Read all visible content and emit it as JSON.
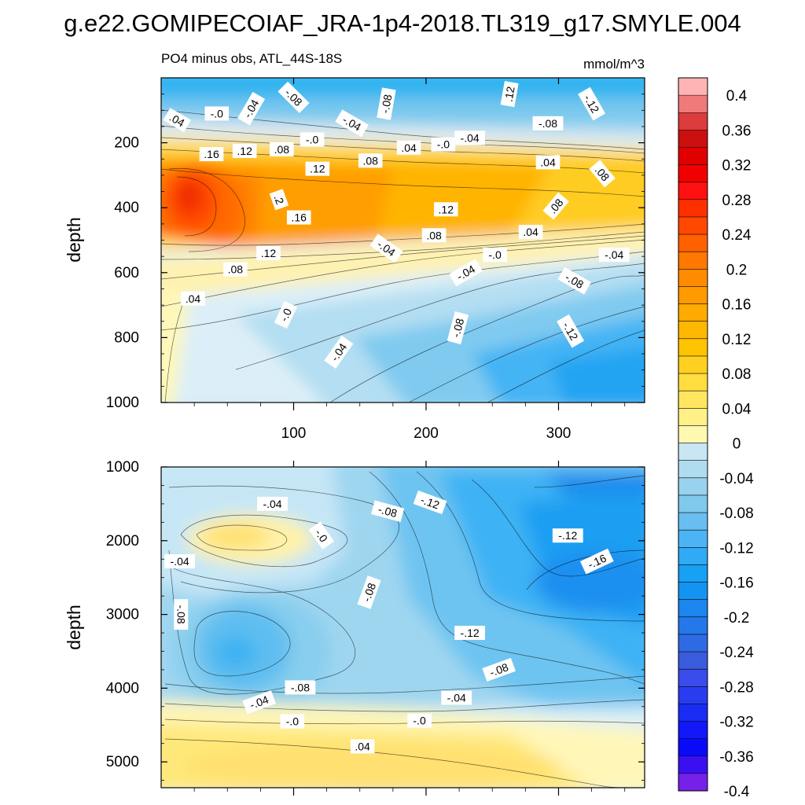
{
  "chart_data": {
    "type": "heatmap",
    "title": "g.e22.GOMIPECOIAF_JRA-1p4-2018.TL319_g17.SMYLE.004",
    "subtitle": "PO4 minus obs, ATL_44S-18S",
    "units": "mmol/m^3",
    "panels": [
      {
        "name": "upper",
        "ylabel": "depth",
        "ylim": [
          1000,
          0
        ],
        "xlim": [
          0,
          365
        ],
        "yticks": [
          "200",
          "400",
          "600",
          "800",
          "1000"
        ],
        "yvals": [
          200,
          400,
          600,
          800,
          1000
        ],
        "xticks": [
          "100",
          "200",
          "300"
        ],
        "xvals": [
          100,
          200,
          300
        ],
        "contour_labels": [
          {
            "text": ".04",
            "x": 12,
            "d": 130,
            "rot": 30
          },
          {
            "text": "-.0",
            "x": 42,
            "d": 110,
            "rot": 0
          },
          {
            "text": "-.04",
            "x": 68,
            "d": 95,
            "rot": -60
          },
          {
            "text": "-.08",
            "x": 100,
            "d": 60,
            "rot": 45
          },
          {
            "text": ".16",
            "x": 38,
            "d": 235,
            "rot": 0
          },
          {
            "text": ".12",
            "x": 63,
            "d": 225,
            "rot": 0
          },
          {
            "text": ".08",
            "x": 91,
            "d": 220,
            "rot": 0
          },
          {
            "text": "-.0",
            "x": 114,
            "d": 190,
            "rot": 0
          },
          {
            "text": ".12",
            "x": 118,
            "d": 280,
            "rot": 0
          },
          {
            "text": "-.04",
            "x": 144,
            "d": 140,
            "rot": 30
          },
          {
            "text": "-.08",
            "x": 170,
            "d": 80,
            "rot": -80
          },
          {
            "text": ".04",
            "x": 187,
            "d": 215,
            "rot": 0
          },
          {
            "text": ".08",
            "x": 158,
            "d": 255,
            "rot": 0
          },
          {
            "text": "-.0",
            "x": 213,
            "d": 205,
            "rot": 0
          },
          {
            "text": "-.04",
            "x": 233,
            "d": 185,
            "rot": 0
          },
          {
            "text": ".12",
            "x": 263,
            "d": 50,
            "rot": -80
          },
          {
            "text": "-.08",
            "x": 292,
            "d": 140,
            "rot": 0
          },
          {
            "text": "-.12",
            "x": 325,
            "d": 80,
            "rot": 60
          },
          {
            "text": ".04",
            "x": 292,
            "d": 260,
            "rot": 0
          },
          {
            "text": ".08",
            "x": 333,
            "d": 295,
            "rot": 50
          },
          {
            "text": ".2",
            "x": 89,
            "d": 375,
            "rot": 70
          },
          {
            "text": ".16",
            "x": 104,
            "d": 430,
            "rot": 0
          },
          {
            "text": ".12",
            "x": 215,
            "d": 405,
            "rot": 0
          },
          {
            "text": ".08",
            "x": 298,
            "d": 395,
            "rot": -50
          },
          {
            "text": ".08",
            "x": 206,
            "d": 485,
            "rot": 0
          },
          {
            "text": ".04",
            "x": 279,
            "d": 475,
            "rot": 0
          },
          {
            "text": "-.04",
            "x": 170,
            "d": 525,
            "rot": 35
          },
          {
            "text": ".12",
            "x": 81,
            "d": 540,
            "rot": 0
          },
          {
            "text": "-.0",
            "x": 252,
            "d": 545,
            "rot": 0
          },
          {
            "text": "-.04",
            "x": 342,
            "d": 545,
            "rot": 0
          },
          {
            "text": ".08",
            "x": 56,
            "d": 590,
            "rot": 0
          },
          {
            "text": "-.04",
            "x": 230,
            "d": 600,
            "rot": -30
          },
          {
            "text": "-.08",
            "x": 312,
            "d": 625,
            "rot": 30
          },
          {
            "text": ".04",
            "x": 24,
            "d": 680,
            "rot": 0
          },
          {
            "text": "-.0",
            "x": 94,
            "d": 730,
            "rot": -65
          },
          {
            "text": "-.08",
            "x": 224,
            "d": 770,
            "rot": -75
          },
          {
            "text": "-.12",
            "x": 309,
            "d": 780,
            "rot": 60
          },
          {
            "text": "-.04",
            "x": 134,
            "d": 845,
            "rot": -55
          }
        ]
      },
      {
        "name": "lower",
        "ylabel": "depth",
        "ylim": [
          5350,
          1000
        ],
        "xlim": [
          0,
          365
        ],
        "yticks": [
          "1000",
          "2000",
          "3000",
          "4000",
          "5000"
        ],
        "yvals": [
          1000,
          2000,
          3000,
          4000,
          5000
        ],
        "contour_labels": [
          {
            "text": "-.04",
            "x": 84,
            "d": 1500,
            "rot": 0
          },
          {
            "text": "-.0",
            "x": 121,
            "d": 1930,
            "rot": 55
          },
          {
            "text": "-.08",
            "x": 171,
            "d": 1600,
            "rot": 15
          },
          {
            "text": "-.12",
            "x": 203,
            "d": 1480,
            "rot": 20
          },
          {
            "text": "-.12",
            "x": 307,
            "d": 1930,
            "rot": 0
          },
          {
            "text": "-.16",
            "x": 329,
            "d": 2280,
            "rot": -25
          },
          {
            "text": "-.04",
            "x": 14,
            "d": 2280,
            "rot": 0
          },
          {
            "text": "-.08",
            "x": 157,
            "d": 2700,
            "rot": -70
          },
          {
            "text": "-.08",
            "x": 15,
            "d": 3000,
            "rot": 90
          },
          {
            "text": "-.12",
            "x": 233,
            "d": 3250,
            "rot": 0
          },
          {
            "text": "-.08",
            "x": 255,
            "d": 3750,
            "rot": -20
          },
          {
            "text": "-.08",
            "x": 105,
            "d": 3990,
            "rot": 0
          },
          {
            "text": "-.04",
            "x": 74,
            "d": 4190,
            "rot": -20
          },
          {
            "text": "-.04",
            "x": 223,
            "d": 4130,
            "rot": 0
          },
          {
            "text": "-.0",
            "x": 99,
            "d": 4450,
            "rot": 0
          },
          {
            "text": "-.0",
            "x": 195,
            "d": 4440,
            "rot": 0
          },
          {
            "text": ".04",
            "x": 152,
            "d": 4790,
            "rot": 0
          }
        ]
      }
    ],
    "colorbar": {
      "levels": [
        0.4,
        0.38,
        0.36,
        0.34,
        0.32,
        0.3,
        0.28,
        0.26,
        0.24,
        0.22,
        0.2,
        0.18,
        0.16,
        0.14,
        0.12,
        0.1,
        0.08,
        0.06,
        0.04,
        0.02,
        0,
        -0.02,
        -0.04,
        -0.06,
        -0.08,
        -0.1,
        -0.12,
        -0.14,
        -0.16,
        -0.18,
        -0.2,
        -0.22,
        -0.24,
        -0.26,
        -0.28,
        -0.3,
        -0.32,
        -0.34,
        -0.36,
        -0.38,
        -0.4
      ],
      "tick_labels": [
        "0.4",
        "0.36",
        "0.32",
        "0.28",
        "0.24",
        "0.2",
        "0.16",
        "0.12",
        "0.08",
        "0.04",
        "0",
        "-0.04",
        "-0.08",
        "-0.12",
        "-0.16",
        "-0.2",
        "-0.24",
        "-0.28",
        "-0.32",
        "-0.36",
        "-0.4"
      ],
      "colors": [
        "#ffb4b4",
        "#ef7a7a",
        "#dc3c3c",
        "#cc1010",
        "#e00000",
        "#f00000",
        "#ff1010",
        "#ff3000",
        "#ff4800",
        "#ff6000",
        "#ff7800",
        "#ff8c00",
        "#ff9a00",
        "#ffaa00",
        "#ffb800",
        "#ffc400",
        "#ffd020",
        "#ffdc40",
        "#ffe660",
        "#fff088",
        "#fff8b0",
        "#c8e6f4",
        "#b0dcf0",
        "#98d2ee",
        "#80c8ec",
        "#68bef0",
        "#4cb4f4",
        "#30aaf4",
        "#18a0f4",
        "#1494f2",
        "#1a86ee",
        "#2478ea",
        "#2e6ae4",
        "#3a5cdc",
        "#3a4cec",
        "#2a3cf0",
        "#1a2cf4",
        "#1218f8",
        "#0a0af8",
        "#3a10f0",
        "#7620e8"
      ]
    }
  }
}
